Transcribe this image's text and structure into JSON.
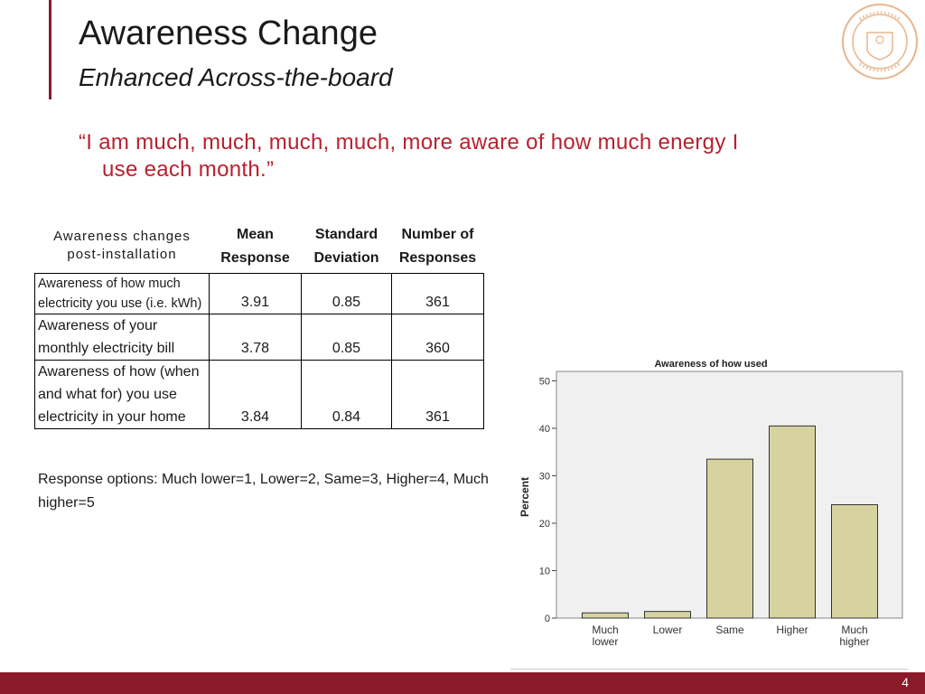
{
  "slide": {
    "title": "Awareness Change",
    "subtitle": "Enhanced Across-the-board",
    "quote_line1": "“I am much, much, much, much, more aware of how much energy I",
    "quote_line2": "use each month.”",
    "page_number": "4",
    "accent_color": "#8b1a2b",
    "quote_color": "#b8202f"
  },
  "table": {
    "headers": {
      "row_label": "Awareness changes post-installation",
      "mean": "Mean Response",
      "sd": "Standard Deviation",
      "n": "Number of Responses"
    },
    "rows": [
      {
        "label": "Awareness of how much electricity you use (i.e. kWh)",
        "mean": "3.91",
        "sd": "0.85",
        "n": "361"
      },
      {
        "label": "Awareness of your monthly electricity bill",
        "mean": "3.78",
        "sd": "0.85",
        "n": "360"
      },
      {
        "label": "Awareness of how (when and what for) you use electricity in your home",
        "mean": "3.84",
        "sd": "0.84",
        "n": "361"
      }
    ],
    "note": "Response options: Much lower=1, Lower=2, Same=3, Higher=4, Much higher=5"
  },
  "chart_data": {
    "type": "bar",
    "title": "Awareness of how used",
    "ylabel": "Percent",
    "xlabel": "",
    "categories": [
      "Much lower",
      "Lower",
      "Same",
      "Higher",
      "Much higher"
    ],
    "values": [
      1.1,
      1.4,
      33.5,
      40.5,
      23.9
    ],
    "ylim": [
      0,
      52
    ],
    "yticks": [
      0,
      10,
      20,
      30,
      40,
      50
    ],
    "bar_color": "#d6d3a0",
    "grid": false
  }
}
